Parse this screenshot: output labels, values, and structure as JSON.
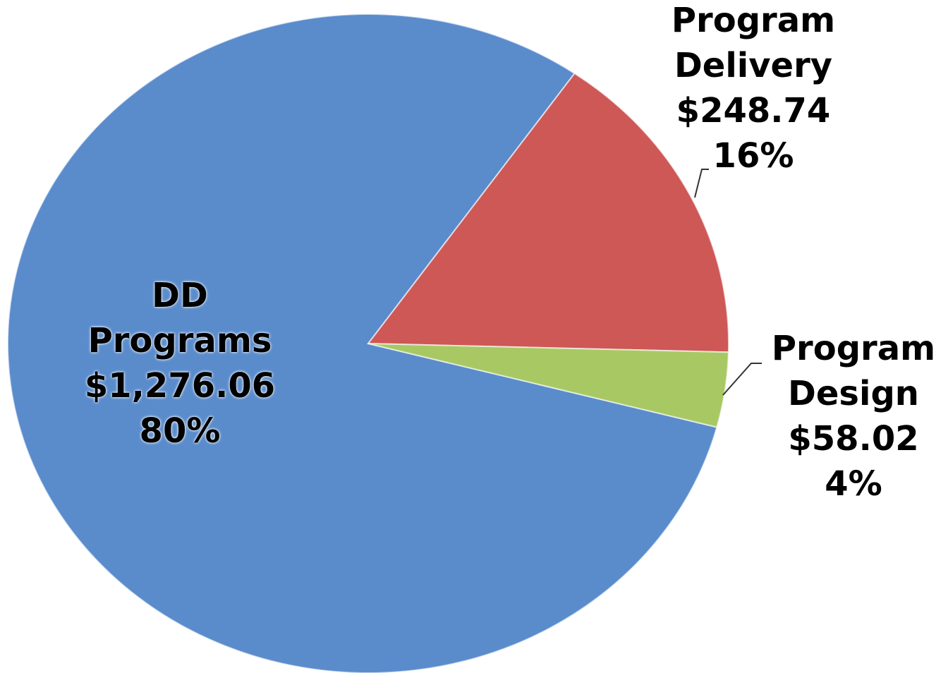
{
  "chart_data": {
    "type": "pie",
    "categories": [
      "DD Programs",
      "Program Delivery",
      "Program Design"
    ],
    "values": [
      1276.06,
      248.74,
      58.02
    ],
    "value_labels": [
      "$1,276.06",
      "$248.74",
      "$58.02"
    ],
    "percents": [
      80,
      16,
      4
    ],
    "percent_labels": [
      "80%",
      "16%",
      "4%"
    ],
    "colors": [
      "#5a8ccc",
      "#cd5856",
      "#a8c864"
    ]
  }
}
